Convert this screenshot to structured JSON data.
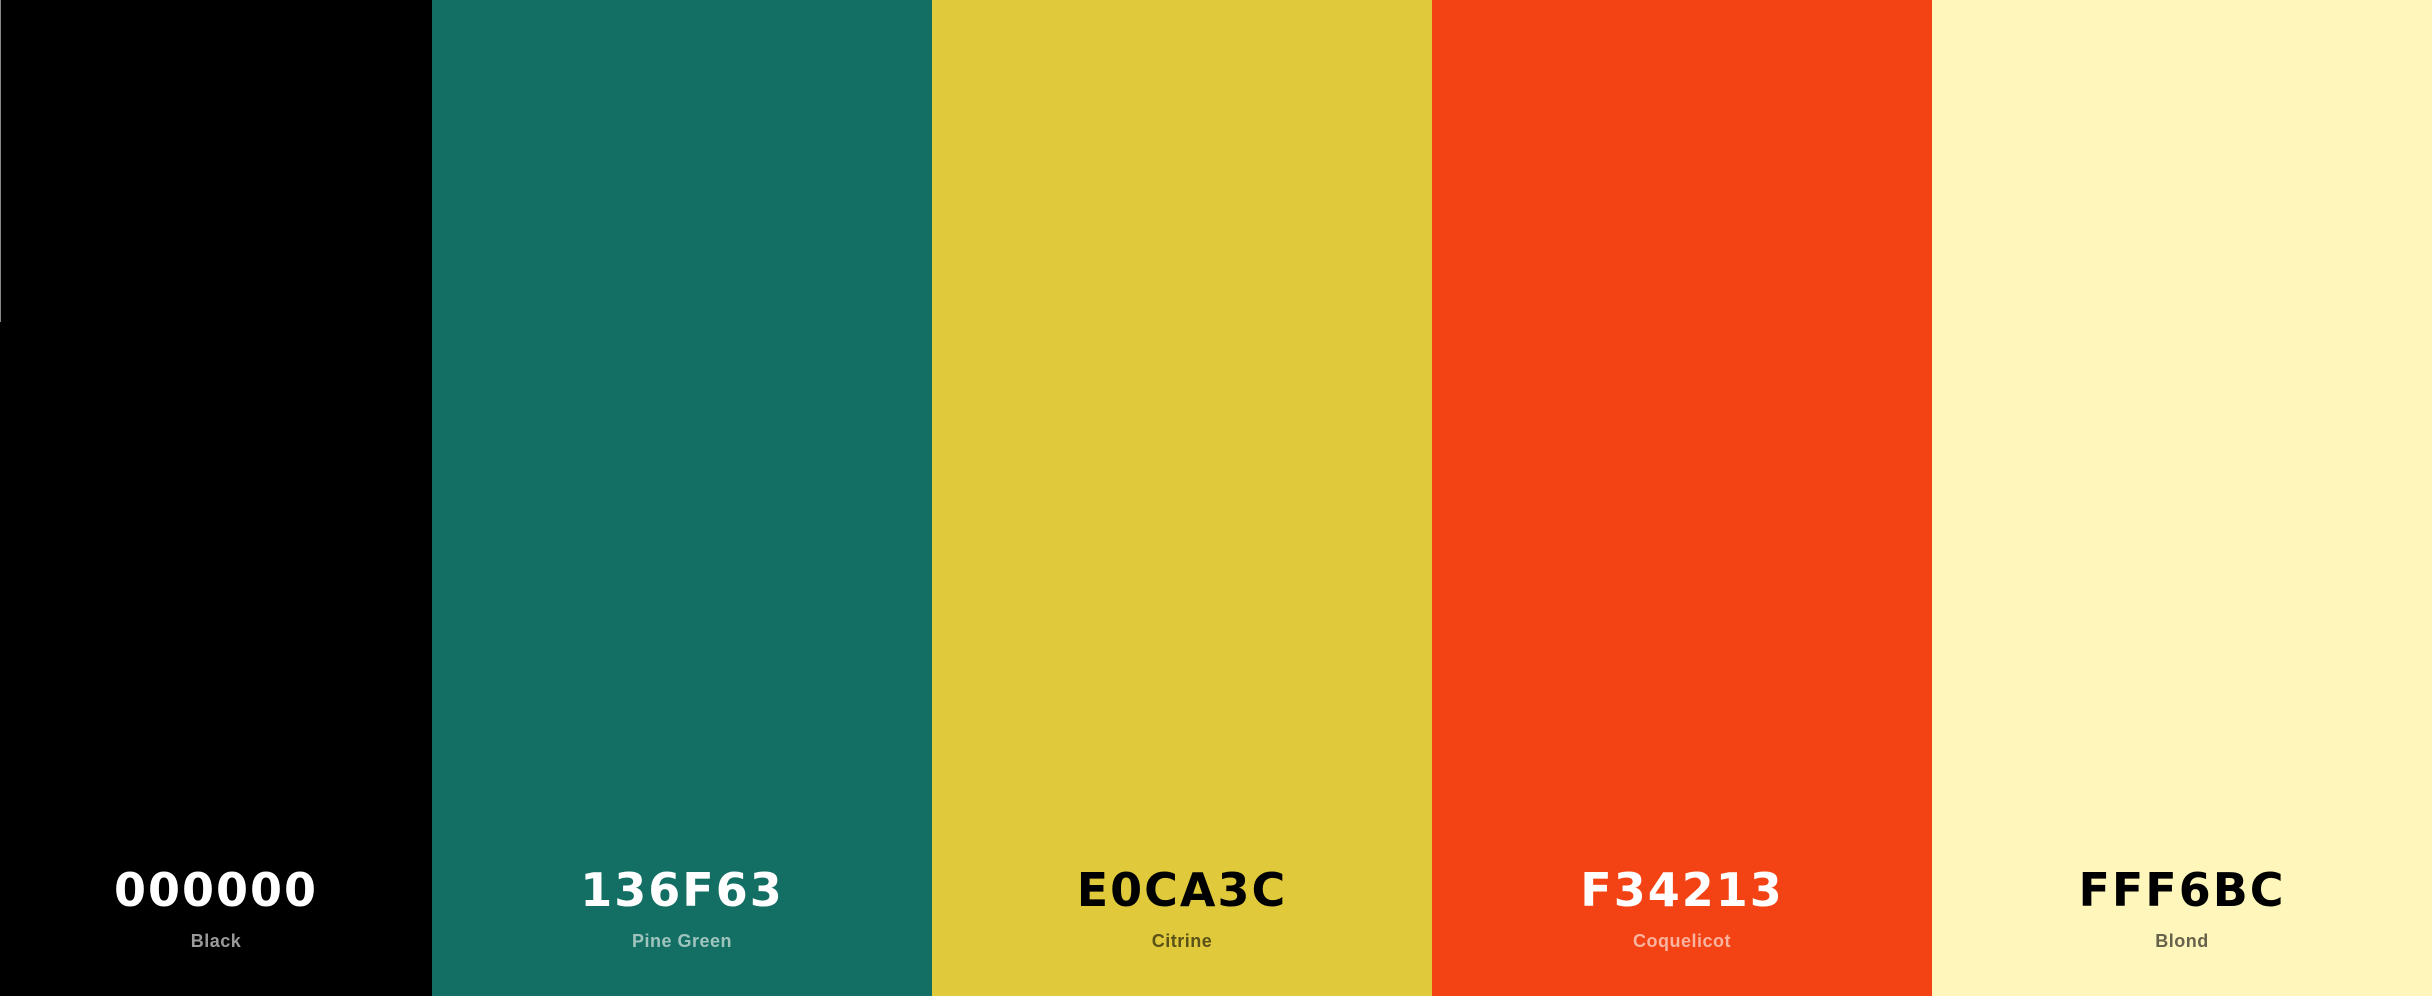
{
  "palette": {
    "colors": [
      {
        "hex": "000000",
        "name": "Black",
        "background": "#000000",
        "hex_color": "#ffffff",
        "name_color": "#9a9a9a"
      },
      {
        "hex": "136F63",
        "name": "Pine Green",
        "background": "#136F63",
        "hex_color": "#ffffff",
        "name_color": "#9fc4be"
      },
      {
        "hex": "E0CA3C",
        "name": "Citrine",
        "background": "#E0CA3C",
        "hex_color": "#000000",
        "name_color": "#5a5218"
      },
      {
        "hex": "F34213",
        "name": "Coquelicot",
        "background": "#F34213",
        "hex_color": "#ffffff",
        "name_color": "#f9b39f"
      },
      {
        "hex": "FFF6BC",
        "name": "Blond",
        "background": "#FFF6BC",
        "hex_color": "#000000",
        "name_color": "#66624b"
      }
    ]
  }
}
